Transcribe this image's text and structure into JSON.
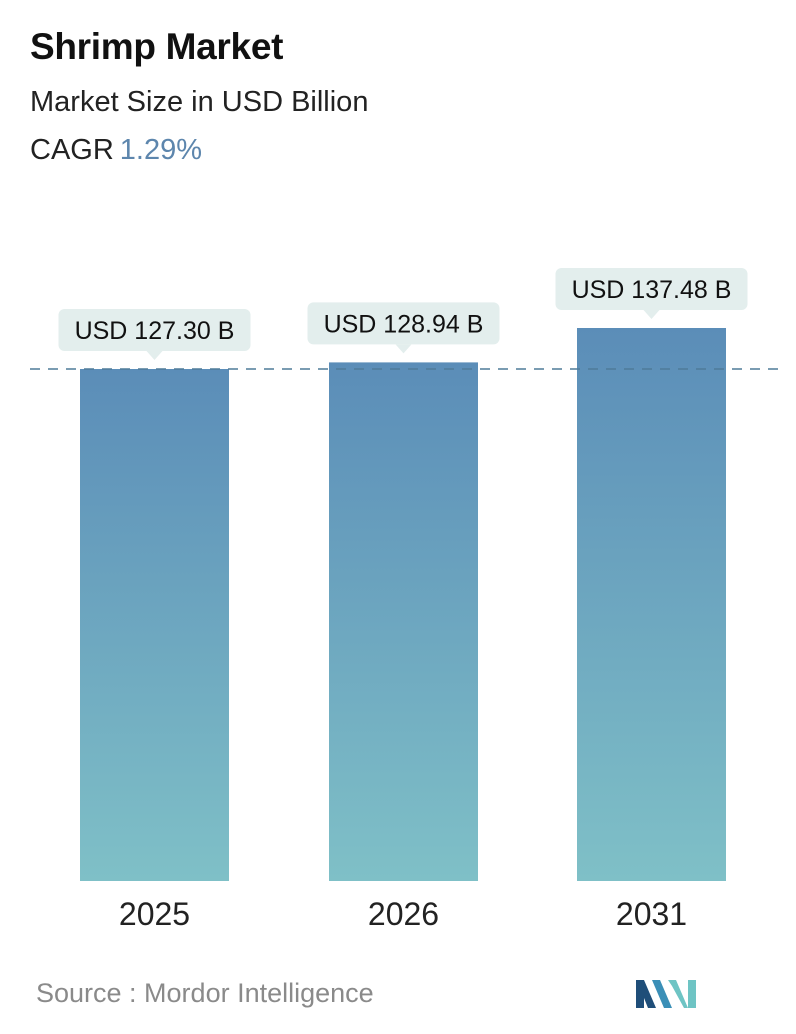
{
  "header": {
    "title": "Shrimp Market",
    "subtitle": "Market Size in USD Billion",
    "cagr_label": "CAGR",
    "cagr_value": "1.29%"
  },
  "chart_data": {
    "type": "bar",
    "categories": [
      "2025",
      "2026",
      "2031"
    ],
    "values": [
      127.3,
      128.94,
      137.48
    ],
    "value_labels": [
      "USD 127.30 B",
      "USD 128.94 B",
      "USD 137.48 B"
    ],
    "title": "Shrimp Market",
    "subtitle": "Market Size in USD Billion",
    "xlabel": "",
    "ylabel": "",
    "reference_line": 127.3,
    "grid": false,
    "legend": "none",
    "colors": {
      "bar_top": "#5b8db8",
      "bar_bottom": "#7fc0c7",
      "callout": "#e3eeed",
      "dashed_line": "#4f7b99"
    }
  },
  "footer": {
    "source": "Source :  Mordor Intelligence"
  },
  "logo": {
    "icon": "mordor-intelligence-logo-icon",
    "colors": [
      "#1f4e79",
      "#3a8fb7",
      "#6ec4c4"
    ]
  }
}
